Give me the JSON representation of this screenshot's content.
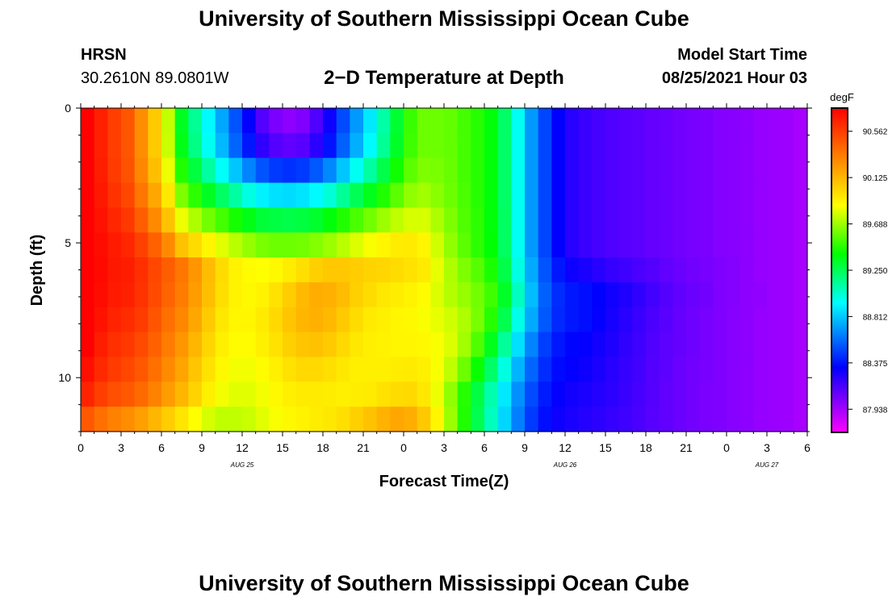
{
  "header": {
    "title": "University of Southern Mississippi Ocean Cube",
    "station": "HRSN",
    "coordinates": "30.2610N  89.0801W",
    "plot_title": "2−D Temperature at Depth",
    "start_label": "Model Start Time",
    "start_value": "08/25/2021 Hour 03"
  },
  "footer": {
    "title": "University of Southern Mississippi Ocean Cube"
  },
  "chart_data": {
    "type": "heatmap",
    "xlabel": "Forecast Time(Z)",
    "ylabel": "Depth (ft)",
    "x_hours": [
      0,
      3,
      6,
      9,
      12,
      15,
      18,
      21,
      24,
      27,
      30,
      33,
      36,
      39,
      42,
      45,
      48,
      51,
      54
    ],
    "x_tick_labels": [
      "0",
      "3",
      "6",
      "9",
      "12",
      "15",
      "18",
      "21",
      "0",
      "3",
      "6",
      "9",
      "12",
      "15",
      "18",
      "21",
      "0",
      "3",
      "6"
    ],
    "xlim": [
      0,
      54
    ],
    "date_labels": [
      {
        "label": "AUG 25",
        "hour": 12
      },
      {
        "label": "AUG 26",
        "hour": 36
      },
      {
        "label": "AUG 27",
        "hour": 51
      }
    ],
    "y_ticks": [
      0,
      5,
      10
    ],
    "ylim": [
      0,
      12
    ],
    "y_inverted": true,
    "colorbar": {
      "unit": "degF",
      "min": 87.8,
      "max": 90.7,
      "labels": [
        90.562,
        90.125,
        89.688,
        89.25,
        88.812,
        88.375,
        87.938
      ]
    },
    "temperature_rows_degF": [
      [
        90.72,
        90.59,
        90.49,
        90.41,
        90.22,
        90.01,
        89.73,
        89.34,
        89.14,
        88.95,
        88.76,
        88.57,
        88.37,
        88.19,
        88.1,
        88.06,
        88.09,
        88.2,
        88.35,
        88.55,
        88.73,
        88.91,
        89.11,
        89.31,
        89.49,
        89.58,
        89.58,
        89.56,
        89.51,
        89.46,
        89.38,
        89.22,
        88.98,
        88.73,
        88.54,
        88.38,
        88.29,
        88.25,
        88.22,
        88.2,
        88.18,
        88.17,
        88.15,
        88.14,
        88.12,
        88.11,
        88.1,
        88.08,
        88.07,
        88.06,
        88.04,
        88.03,
        88.02,
        88.0
      ],
      [
        90.72,
        90.59,
        90.49,
        90.41,
        90.22,
        90.01,
        89.74,
        89.36,
        89.17,
        88.98,
        88.8,
        88.61,
        88.43,
        88.27,
        88.19,
        88.16,
        88.18,
        88.28,
        88.42,
        88.6,
        88.78,
        88.95,
        89.14,
        89.33,
        89.5,
        89.58,
        89.58,
        89.56,
        89.51,
        89.46,
        89.38,
        89.22,
        88.98,
        88.73,
        88.54,
        88.38,
        88.29,
        88.25,
        88.22,
        88.2,
        88.18,
        88.17,
        88.15,
        88.14,
        88.12,
        88.11,
        88.1,
        88.08,
        88.07,
        88.06,
        88.04,
        88.03,
        88.02,
        88.0
      ],
      [
        90.72,
        90.6,
        90.5,
        90.42,
        90.24,
        90.05,
        89.8,
        89.45,
        89.29,
        89.12,
        88.97,
        88.83,
        88.68,
        88.57,
        88.51,
        88.49,
        88.51,
        88.58,
        88.69,
        88.83,
        88.98,
        89.12,
        89.27,
        89.42,
        89.55,
        89.61,
        89.6,
        89.57,
        89.51,
        89.46,
        89.38,
        89.22,
        88.98,
        88.73,
        88.54,
        88.38,
        88.29,
        88.25,
        88.22,
        88.2,
        88.18,
        88.17,
        88.15,
        88.14,
        88.12,
        88.11,
        88.1,
        88.08,
        88.07,
        88.06,
        88.04,
        88.03,
        88.02,
        88.0
      ],
      [
        90.73,
        90.62,
        90.53,
        90.46,
        90.3,
        90.13,
        89.91,
        89.61,
        89.47,
        89.34,
        89.23,
        89.12,
        89.01,
        88.93,
        88.89,
        88.88,
        88.9,
        88.95,
        89.03,
        89.14,
        89.25,
        89.35,
        89.45,
        89.55,
        89.64,
        89.67,
        89.63,
        89.58,
        89.52,
        89.46,
        89.38,
        89.22,
        88.98,
        88.73,
        88.54,
        88.38,
        88.29,
        88.25,
        88.22,
        88.2,
        88.18,
        88.17,
        88.15,
        88.14,
        88.12,
        88.11,
        88.1,
        88.08,
        88.07,
        88.06,
        88.04,
        88.03,
        88.02,
        88.0
      ],
      [
        90.74,
        90.64,
        90.57,
        90.51,
        90.38,
        90.23,
        90.04,
        89.8,
        89.69,
        89.59,
        89.51,
        89.43,
        89.36,
        89.3,
        89.28,
        89.27,
        89.29,
        89.32,
        89.38,
        89.45,
        89.52,
        89.59,
        89.66,
        89.72,
        89.76,
        89.76,
        89.69,
        89.61,
        89.53,
        89.47,
        89.38,
        89.23,
        88.98,
        88.73,
        88.54,
        88.38,
        88.29,
        88.25,
        88.22,
        88.2,
        88.18,
        88.17,
        88.15,
        88.14,
        88.12,
        88.11,
        88.1,
        88.08,
        88.07,
        88.06,
        88.04,
        88.03,
        88.02,
        88.0
      ],
      [
        90.75,
        90.66,
        90.61,
        90.57,
        90.48,
        90.37,
        90.23,
        90.04,
        89.95,
        89.86,
        89.78,
        89.71,
        89.65,
        89.6,
        89.58,
        89.58,
        89.59,
        89.62,
        89.66,
        89.71,
        89.77,
        89.82,
        89.86,
        89.89,
        89.9,
        89.86,
        89.75,
        89.64,
        89.55,
        89.47,
        89.39,
        89.23,
        88.98,
        88.73,
        88.54,
        88.38,
        88.29,
        88.25,
        88.22,
        88.2,
        88.18,
        88.17,
        88.15,
        88.14,
        88.12,
        88.11,
        88.1,
        88.08,
        88.07,
        88.06,
        88.04,
        88.03,
        88.02,
        88.0
      ],
      [
        90.76,
        90.67,
        90.62,
        90.6,
        90.54,
        90.46,
        90.38,
        90.3,
        90.19,
        90.06,
        89.95,
        89.87,
        89.84,
        89.83,
        89.85,
        89.89,
        89.94,
        89.99,
        90.02,
        90.02,
        90.0,
        89.98,
        89.97,
        89.95,
        89.93,
        89.9,
        89.79,
        89.69,
        89.61,
        89.54,
        89.44,
        89.27,
        89.01,
        88.77,
        88.57,
        88.43,
        88.35,
        88.32,
        88.29,
        88.26,
        88.24,
        88.21,
        88.19,
        88.16,
        88.14,
        88.12,
        88.11,
        88.09,
        88.08,
        88.06,
        88.04,
        88.03,
        88.02,
        88.0
      ],
      [
        90.75,
        90.66,
        90.61,
        90.59,
        90.53,
        90.45,
        90.36,
        90.28,
        90.17,
        90.05,
        89.94,
        89.87,
        89.85,
        89.87,
        89.93,
        90.0,
        90.07,
        90.11,
        90.1,
        90.06,
        89.99,
        89.95,
        89.91,
        89.89,
        89.87,
        89.84,
        89.77,
        89.7,
        89.65,
        89.59,
        89.5,
        89.33,
        89.07,
        88.81,
        88.6,
        88.48,
        88.43,
        88.41,
        88.38,
        88.34,
        88.31,
        88.27,
        88.23,
        88.19,
        88.16,
        88.14,
        88.12,
        88.09,
        88.08,
        88.06,
        88.05,
        88.03,
        88.02,
        88.0
      ],
      [
        90.73,
        90.64,
        90.58,
        90.55,
        90.5,
        90.41,
        90.32,
        90.24,
        90.13,
        90.01,
        89.91,
        89.86,
        89.86,
        89.9,
        89.96,
        90.03,
        90.08,
        90.1,
        90.07,
        90.01,
        89.95,
        89.9,
        89.88,
        89.86,
        89.85,
        89.82,
        89.79,
        89.75,
        89.69,
        89.6,
        89.46,
        89.26,
        89.0,
        88.77,
        88.58,
        88.47,
        88.43,
        88.41,
        88.37,
        88.33,
        88.29,
        88.25,
        88.21,
        88.18,
        88.15,
        88.13,
        88.11,
        88.09,
        88.07,
        88.06,
        88.04,
        88.03,
        88.02,
        88.0
      ],
      [
        90.7,
        90.6,
        90.54,
        90.51,
        90.45,
        90.37,
        90.28,
        90.19,
        90.08,
        89.97,
        89.88,
        89.84,
        89.84,
        89.88,
        89.93,
        89.99,
        90.03,
        90.04,
        90.01,
        89.96,
        89.91,
        89.88,
        89.87,
        89.86,
        89.86,
        89.85,
        89.82,
        89.77,
        89.67,
        89.53,
        89.35,
        89.13,
        88.89,
        88.68,
        88.52,
        88.43,
        88.39,
        88.37,
        88.34,
        88.31,
        88.27,
        88.24,
        88.2,
        88.17,
        88.15,
        88.13,
        88.11,
        88.09,
        88.07,
        88.06,
        88.04,
        88.03,
        88.02,
        88.0
      ],
      [
        90.65,
        90.56,
        90.5,
        90.46,
        90.4,
        90.32,
        90.23,
        90.14,
        90.03,
        89.93,
        89.85,
        89.81,
        89.81,
        89.84,
        89.88,
        89.93,
        89.96,
        89.96,
        89.94,
        89.91,
        89.88,
        89.88,
        89.88,
        89.89,
        89.9,
        89.88,
        89.82,
        89.72,
        89.58,
        89.41,
        89.22,
        89.01,
        88.79,
        88.61,
        88.48,
        88.4,
        88.37,
        88.35,
        88.32,
        88.29,
        88.26,
        88.23,
        88.19,
        88.17,
        88.14,
        88.12,
        88.11,
        88.09,
        88.07,
        88.06,
        88.04,
        88.03,
        88.02,
        88.0
      ],
      [
        90.58,
        90.49,
        90.43,
        90.4,
        90.34,
        90.26,
        90.17,
        90.08,
        89.98,
        89.88,
        89.81,
        89.78,
        89.78,
        89.81,
        89.85,
        89.88,
        89.9,
        89.9,
        89.89,
        89.88,
        89.89,
        89.9,
        89.93,
        89.95,
        89.96,
        89.91,
        89.8,
        89.64,
        89.46,
        89.28,
        89.1,
        88.91,
        88.71,
        88.55,
        88.44,
        88.37,
        88.34,
        88.32,
        88.3,
        88.28,
        88.25,
        88.22,
        88.19,
        88.16,
        88.14,
        88.12,
        88.1,
        88.09,
        88.07,
        88.06,
        88.04,
        88.03,
        88.02,
        88.0
      ],
      [
        90.4,
        90.32,
        90.26,
        90.22,
        90.16,
        90.08,
        90.0,
        89.92,
        89.83,
        89.76,
        89.72,
        89.72,
        89.74,
        89.78,
        89.82,
        89.85,
        89.87,
        89.89,
        89.91,
        89.94,
        89.99,
        90.04,
        90.09,
        90.13,
        90.11,
        90.02,
        89.86,
        89.66,
        89.45,
        89.26,
        89.07,
        88.87,
        88.67,
        88.51,
        88.41,
        88.35,
        88.32,
        88.3,
        88.28,
        88.26,
        88.24,
        88.21,
        88.18,
        88.16,
        88.14,
        88.12,
        88.1,
        88.09,
        88.07,
        88.06,
        88.04,
        88.03,
        88.02,
        88.0
      ]
    ]
  }
}
